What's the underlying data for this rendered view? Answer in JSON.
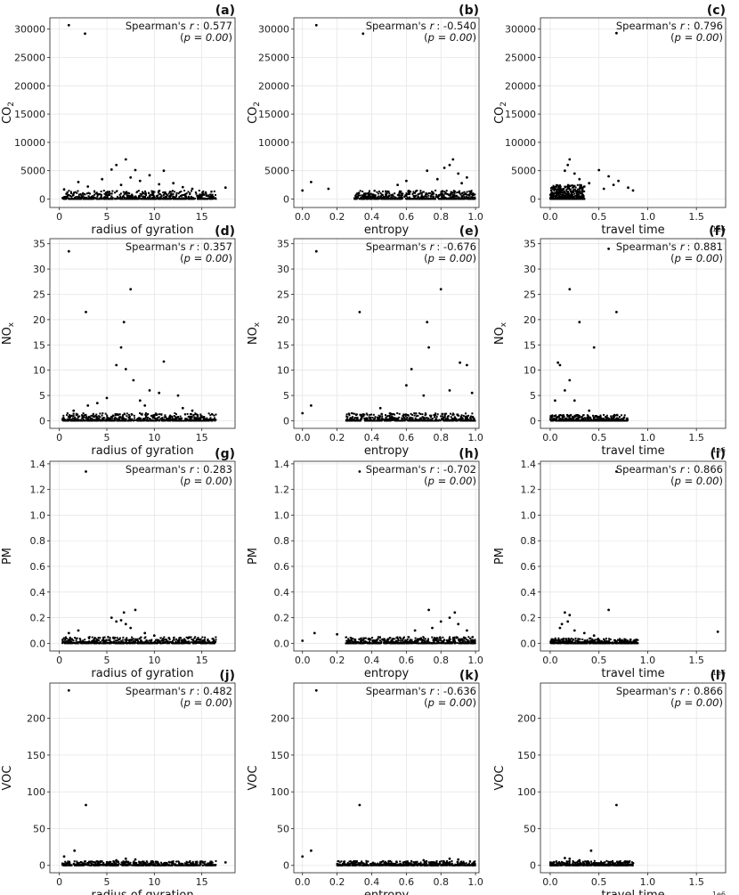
{
  "chart_data": [
    {
      "id": "a",
      "type": "scatter",
      "panel_label": "(a)",
      "xlabel": "radius of gyration",
      "ylabel": "CO",
      "ylabel_sub": "2",
      "xlim": [
        -1,
        18.5
      ],
      "ylim": [
        -1500,
        32000
      ],
      "xticks": [
        0,
        5,
        10,
        15
      ],
      "xtick_labels": [
        "0",
        "5",
        "10",
        "15"
      ],
      "yticks": [
        0,
        5000,
        10000,
        15000,
        20000,
        25000,
        30000
      ],
      "ytick_labels": [
        "0",
        "5000",
        "10000",
        "15000",
        "20000",
        "25000",
        "30000"
      ],
      "stat_name": "Spearman's",
      "stat_sym": "r",
      "stat_value": ": 0.577",
      "p_text": "p = 0.00",
      "x_multiplier": "",
      "points": [
        [
          1,
          30700
        ],
        [
          2.7,
          29200
        ],
        [
          7,
          7000
        ],
        [
          6,
          6000
        ],
        [
          5.5,
          5200
        ],
        [
          8,
          5100
        ],
        [
          11,
          5000
        ],
        [
          9.5,
          4200
        ],
        [
          7.5,
          3800
        ],
        [
          2,
          3000
        ],
        [
          4.5,
          3500
        ],
        [
          12,
          2800
        ],
        [
          10.5,
          2600
        ],
        [
          17.5,
          2000
        ],
        [
          0.5,
          1700
        ],
        [
          3,
          2200
        ],
        [
          14,
          1800
        ],
        [
          6.5,
          2500
        ],
        [
          8.5,
          3200
        ],
        [
          13,
          2100
        ]
      ],
      "band": {
        "x": [
          0.3,
          16.5
        ],
        "ymax": 1500,
        "n": 700
      }
    },
    {
      "id": "b",
      "type": "scatter",
      "panel_label": "(b)",
      "xlabel": "entropy",
      "ylabel": "CO",
      "ylabel_sub": "2",
      "xlim": [
        -0.05,
        1.02
      ],
      "ylim": [
        -1500,
        32000
      ],
      "xticks": [
        0,
        0.2,
        0.4,
        0.6,
        0.8,
        1.0
      ],
      "xtick_labels": [
        "0.0",
        "0.2",
        "0.4",
        "0.6",
        "0.8",
        "1.0"
      ],
      "yticks": [
        0,
        5000,
        10000,
        15000,
        20000,
        25000,
        30000
      ],
      "ytick_labels": [
        "0",
        "5000",
        "10000",
        "15000",
        "20000",
        "25000",
        "30000"
      ],
      "stat_name": "Spearman's",
      "stat_sym": "r",
      "stat_value": ": -0.540",
      "p_text": "p = 0.00",
      "x_multiplier": "",
      "points": [
        [
          0.08,
          30700
        ],
        [
          0.35,
          29200
        ],
        [
          0.87,
          7000
        ],
        [
          0.85,
          6000
        ],
        [
          0.72,
          5000
        ],
        [
          0.9,
          4500
        ],
        [
          0.95,
          3800
        ],
        [
          0.78,
          3500
        ],
        [
          0.6,
          3200
        ],
        [
          0.05,
          3000
        ],
        [
          0.82,
          5500
        ],
        [
          0.92,
          2800
        ],
        [
          0.55,
          2500
        ],
        [
          0.0,
          1500
        ],
        [
          0.15,
          1800
        ]
      ],
      "band": {
        "x": [
          0.3,
          1.0
        ],
        "ymax": 1500,
        "n": 600
      }
    },
    {
      "id": "c",
      "type": "scatter",
      "panel_label": "(c)",
      "xlabel": "travel time",
      "ylabel": "CO",
      "ylabel_sub": "2",
      "xlim": [
        -0.1,
        1.8
      ],
      "ylim": [
        -1500,
        32000
      ],
      "xticks": [
        0,
        0.5,
        1.0,
        1.5
      ],
      "xtick_labels": [
        "0.0",
        "0.5",
        "1.0",
        "1.5"
      ],
      "yticks": [
        0,
        5000,
        10000,
        15000,
        20000,
        25000,
        30000
      ],
      "ytick_labels": [
        "0",
        "5000",
        "10000",
        "15000",
        "20000",
        "25000",
        "30000"
      ],
      "stat_name": "Spearman's",
      "stat_sym": "r",
      "stat_value": ": 0.796",
      "p_text": "p = 0.00",
      "x_multiplier": "1e6",
      "points": [
        [
          0.68,
          29300
        ],
        [
          0.2,
          7000
        ],
        [
          0.18,
          6000
        ],
        [
          0.25,
          4500
        ],
        [
          0.5,
          5100
        ],
        [
          0.6,
          4000
        ],
        [
          0.7,
          3200
        ],
        [
          0.65,
          2500
        ],
        [
          0.8,
          2000
        ],
        [
          0.85,
          1500
        ],
        [
          0.4,
          2800
        ],
        [
          0.3,
          3500
        ],
        [
          0.15,
          5000
        ],
        [
          0.35,
          2200
        ],
        [
          0.55,
          1800
        ]
      ],
      "band": {
        "x": [
          0.0,
          0.35
        ],
        "ymax": 2500,
        "n": 500
      }
    },
    {
      "id": "d",
      "type": "scatter",
      "panel_label": "(d)",
      "xlabel": "radius of gyration",
      "ylabel": "NO",
      "ylabel_sub": "x",
      "xlim": [
        -1,
        18.5
      ],
      "ylim": [
        -1.5,
        36
      ],
      "xticks": [
        0,
        5,
        10,
        15
      ],
      "xtick_labels": [
        "0",
        "5",
        "10",
        "15"
      ],
      "yticks": [
        0,
        5,
        10,
        15,
        20,
        25,
        30,
        35
      ],
      "ytick_labels": [
        "0",
        "5",
        "10",
        "15",
        "20",
        "25",
        "30",
        "35"
      ],
      "stat_name": "Spearman's",
      "stat_sym": "r",
      "stat_value": ": 0.357",
      "p_text": "p = 0.00",
      "x_multiplier": "",
      "points": [
        [
          1,
          33.5
        ],
        [
          2.8,
          21.5
        ],
        [
          7.5,
          26
        ],
        [
          6.8,
          19.5
        ],
        [
          6.5,
          14.5
        ],
        [
          7,
          10.2
        ],
        [
          6,
          11
        ],
        [
          11,
          11.7
        ],
        [
          5,
          4.5
        ],
        [
          9.5,
          6
        ],
        [
          10.5,
          5.5
        ],
        [
          12.5,
          5
        ],
        [
          7.8,
          8
        ],
        [
          3,
          3
        ],
        [
          13,
          2.5
        ],
        [
          4,
          3.5
        ],
        [
          8.5,
          4
        ],
        [
          14,
          2
        ],
        [
          1.5,
          2
        ],
        [
          9,
          3
        ]
      ],
      "band": {
        "x": [
          0.3,
          16.5
        ],
        "ymax": 1.5,
        "n": 650
      }
    },
    {
      "id": "e",
      "type": "scatter",
      "panel_label": "(e)",
      "xlabel": "entropy",
      "ylabel": "NO",
      "ylabel_sub": "x",
      "xlim": [
        -0.05,
        1.02
      ],
      "ylim": [
        -1.5,
        36
      ],
      "xticks": [
        0,
        0.2,
        0.4,
        0.6,
        0.8,
        1.0
      ],
      "xtick_labels": [
        "0.0",
        "0.2",
        "0.4",
        "0.6",
        "0.8",
        "1.0"
      ],
      "stat_name": "Spearman's",
      "stat_sym": "r",
      "stat_value": ": -0.676",
      "p_text": "p = 0.00",
      "x_multiplier": "",
      "yticks": [
        0,
        5,
        10,
        15,
        20,
        25,
        30,
        35
      ],
      "ytick_labels": [
        "0",
        "5",
        "10",
        "15",
        "20",
        "25",
        "30",
        "35"
      ],
      "points": [
        [
          0.08,
          33.5
        ],
        [
          0.33,
          21.5
        ],
        [
          0.8,
          26
        ],
        [
          0.72,
          19.5
        ],
        [
          0.73,
          14.5
        ],
        [
          0.63,
          10.2
        ],
        [
          0.91,
          11.5
        ],
        [
          0.95,
          11
        ],
        [
          0.6,
          7
        ],
        [
          0.85,
          6
        ],
        [
          0.05,
          3
        ],
        [
          0.0,
          1.5
        ],
        [
          0.45,
          2.5
        ],
        [
          0.7,
          5
        ],
        [
          0.98,
          5.5
        ]
      ],
      "band": {
        "x": [
          0.25,
          1.0
        ],
        "ymax": 1.5,
        "n": 550
      }
    },
    {
      "id": "f",
      "type": "scatter",
      "panel_label": "(f)",
      "xlabel": "travel time",
      "ylabel": "NO",
      "ylabel_sub": "x",
      "xlim": [
        -0.1,
        1.8
      ],
      "ylim": [
        -1.5,
        36
      ],
      "xticks": [
        0,
        0.5,
        1.0,
        1.5
      ],
      "xtick_labels": [
        "0.0",
        "0.5",
        "1.0",
        "1.5"
      ],
      "stat_name": "Spearman's",
      "stat_sym": "r",
      "stat_value": ": 0.881",
      "p_text": "p = 0.00",
      "x_multiplier": "1e6",
      "yticks": [
        0,
        5,
        10,
        15,
        20,
        25,
        30,
        35
      ],
      "ytick_labels": [
        "0",
        "5",
        "10",
        "15",
        "20",
        "25",
        "30",
        "35"
      ],
      "points": [
        [
          0.6,
          34
        ],
        [
          0.2,
          26
        ],
        [
          0.68,
          21.5
        ],
        [
          0.3,
          19.5
        ],
        [
          0.45,
          14.5
        ],
        [
          0.08,
          11.5
        ],
        [
          0.1,
          11
        ],
        [
          0.2,
          8
        ],
        [
          0.15,
          6
        ],
        [
          0.25,
          4
        ],
        [
          0.05,
          4
        ],
        [
          0.4,
          2
        ]
      ],
      "band": {
        "x": [
          0.0,
          0.8
        ],
        "ymax": 1.2,
        "n": 450
      }
    },
    {
      "id": "g",
      "type": "scatter",
      "panel_label": "(g)",
      "xlabel": "radius of gyration",
      "ylabel": "PM",
      "ylabel_sub": "",
      "xlim": [
        -1,
        18.5
      ],
      "ylim": [
        -0.06,
        1.42
      ],
      "xticks": [
        0,
        5,
        10,
        15
      ],
      "xtick_labels": [
        "0",
        "5",
        "10",
        "15"
      ],
      "yticks": [
        0,
        0.2,
        0.4,
        0.6,
        0.8,
        1.0,
        1.2,
        1.4
      ],
      "ytick_labels": [
        "0.0",
        "0.2",
        "0.4",
        "0.6",
        "0.8",
        "1.0",
        "1.2",
        "1.4"
      ],
      "stat_name": "Spearman's",
      "stat_sym": "r",
      "stat_value": ": 0.283",
      "p_text": "p = 0.00",
      "x_multiplier": "",
      "points": [
        [
          2.8,
          1.34
        ],
        [
          6.8,
          0.24
        ],
        [
          8,
          0.26
        ],
        [
          5.5,
          0.2
        ],
        [
          6,
          0.17
        ],
        [
          7,
          0.15
        ],
        [
          7.5,
          0.12
        ],
        [
          1,
          0.08
        ],
        [
          2,
          0.1
        ],
        [
          9,
          0.08
        ],
        [
          10,
          0.06
        ],
        [
          6.5,
          0.18
        ]
      ],
      "band": {
        "x": [
          0.3,
          16.5
        ],
        "ymax": 0.05,
        "n": 600
      }
    },
    {
      "id": "h",
      "type": "scatter",
      "panel_label": "(h)",
      "xlabel": "entropy",
      "ylabel": "PM",
      "ylabel_sub": "",
      "xlim": [
        -0.05,
        1.02
      ],
      "ylim": [
        -0.06,
        1.42
      ],
      "xticks": [
        0,
        0.2,
        0.4,
        0.6,
        0.8,
        1.0
      ],
      "xtick_labels": [
        "0.0",
        "0.2",
        "0.4",
        "0.6",
        "0.8",
        "1.0"
      ],
      "yticks": [
        0,
        0.2,
        0.4,
        0.6,
        0.8,
        1.0,
        1.2,
        1.4
      ],
      "ytick_labels": [
        "0.0",
        "0.2",
        "0.4",
        "0.6",
        "0.8",
        "1.0",
        "1.2",
        "1.4"
      ],
      "stat_name": "Spearman's",
      "stat_sym": "r",
      "stat_value": ": -0.702",
      "p_text": "p = 0.00",
      "x_multiplier": "",
      "points": [
        [
          0.33,
          1.34
        ],
        [
          0.73,
          0.26
        ],
        [
          0.88,
          0.24
        ],
        [
          0.85,
          0.2
        ],
        [
          0.8,
          0.17
        ],
        [
          0.9,
          0.15
        ],
        [
          0.75,
          0.12
        ],
        [
          0.07,
          0.08
        ],
        [
          0.2,
          0.07
        ],
        [
          0.65,
          0.1
        ],
        [
          0.95,
          0.1
        ],
        [
          0.0,
          0.02
        ]
      ],
      "band": {
        "x": [
          0.25,
          1.0
        ],
        "ymax": 0.05,
        "n": 550
      }
    },
    {
      "id": "i",
      "type": "scatter",
      "panel_label": "(i)",
      "xlabel": "travel time",
      "ylabel": "PM",
      "ylabel_sub": "",
      "xlim": [
        -0.1,
        1.8
      ],
      "ylim": [
        -0.06,
        1.42
      ],
      "xticks": [
        0,
        0.5,
        1.0,
        1.5
      ],
      "xtick_labels": [
        "0.0",
        "0.5",
        "1.0",
        "1.5"
      ],
      "yticks": [
        0,
        0.2,
        0.4,
        0.6,
        0.8,
        1.0,
        1.2,
        1.4
      ],
      "ytick_labels": [
        "0.0",
        "0.2",
        "0.4",
        "0.6",
        "0.8",
        "1.0",
        "1.2",
        "1.4"
      ],
      "stat_name": "Spearman's",
      "stat_sym": "r",
      "stat_value": ": 0.866",
      "p_text": "p = 0.00",
      "x_multiplier": "1e6",
      "points": [
        [
          0.68,
          1.34
        ],
        [
          0.6,
          0.26
        ],
        [
          0.15,
          0.24
        ],
        [
          0.2,
          0.22
        ],
        [
          0.18,
          0.17
        ],
        [
          0.12,
          0.15
        ],
        [
          0.25,
          0.1
        ],
        [
          0.35,
          0.08
        ],
        [
          0.45,
          0.06
        ],
        [
          1.72,
          0.09
        ],
        [
          0.1,
          0.12
        ]
      ],
      "band": {
        "x": [
          0.0,
          0.9
        ],
        "ymax": 0.04,
        "n": 450
      }
    },
    {
      "id": "j",
      "type": "scatter",
      "panel_label": "(j)",
      "xlabel": "radius of gyration",
      "ylabel": "VOC",
      "ylabel_sub": "",
      "xlim": [
        -1,
        18.5
      ],
      "ylim": [
        -10,
        248
      ],
      "xticks": [
        0,
        5,
        10,
        15
      ],
      "xtick_labels": [
        "0",
        "5",
        "10",
        "15"
      ],
      "yticks": [
        0,
        50,
        100,
        150,
        200
      ],
      "ytick_labels": [
        "0",
        "50",
        "100",
        "150",
        "200"
      ],
      "stat_name": "Spearman's",
      "stat_sym": "r",
      "stat_value": ": 0.482",
      "p_text": "p = 0.00",
      "x_multiplier": "",
      "points": [
        [
          1,
          238
        ],
        [
          2.8,
          82
        ],
        [
          1.6,
          20
        ],
        [
          0.5,
          12
        ],
        [
          7,
          9
        ],
        [
          8,
          8
        ],
        [
          6,
          7
        ],
        [
          17.5,
          4
        ]
      ],
      "band": {
        "x": [
          0.3,
          16.5
        ],
        "ymax": 6,
        "n": 650
      }
    },
    {
      "id": "k",
      "type": "scatter",
      "panel_label": "(k)",
      "xlabel": "entropy",
      "ylabel": "VOC",
      "ylabel_sub": "",
      "xlim": [
        -0.05,
        1.02
      ],
      "ylim": [
        -10,
        248
      ],
      "xticks": [
        0,
        0.2,
        0.4,
        0.6,
        0.8,
        1.0
      ],
      "xtick_labels": [
        "0.0",
        "0.2",
        "0.4",
        "0.6",
        "0.8",
        "1.0"
      ],
      "yticks": [
        0,
        50,
        100,
        150,
        200
      ],
      "ytick_labels": [
        "0",
        "50",
        "100",
        "150",
        "200"
      ],
      "stat_name": "Spearman's",
      "stat_sym": "r",
      "stat_value": ": -0.636",
      "p_text": "p = 0.00",
      "x_multiplier": "",
      "points": [
        [
          0.08,
          238
        ],
        [
          0.33,
          82
        ],
        [
          0.05,
          20
        ],
        [
          0.0,
          12
        ],
        [
          0.85,
          9
        ],
        [
          0.9,
          8
        ],
        [
          0.7,
          7
        ]
      ],
      "band": {
        "x": [
          0.2,
          1.0
        ],
        "ymax": 6,
        "n": 600
      }
    },
    {
      "id": "l",
      "type": "scatter",
      "panel_label": "(l)",
      "xlabel": "travel time",
      "ylabel": "VOC",
      "ylabel_sub": "",
      "xlim": [
        -0.1,
        1.8
      ],
      "ylim": [
        -10,
        248
      ],
      "xticks": [
        0,
        0.5,
        1.0,
        1.5
      ],
      "xtick_labels": [
        "0.0",
        "0.5",
        "1.0",
        "1.5"
      ],
      "yticks": [
        0,
        50,
        100,
        150,
        200
      ],
      "ytick_labels": [
        "0",
        "50",
        "100",
        "150",
        "200"
      ],
      "stat_name": "Spearman's",
      "stat_sym": "r",
      "stat_value": ": 0.866",
      "p_text": "p = 0.00",
      "x_multiplier": "1e6",
      "points": [
        [
          0.68,
          82
        ],
        [
          0.42,
          20
        ],
        [
          0.15,
          10
        ],
        [
          0.2,
          9
        ],
        [
          0.3,
          7
        ],
        [
          0.8,
          4
        ],
        [
          0.85,
          3
        ]
      ],
      "band": {
        "x": [
          0.0,
          0.85
        ],
        "ymax": 6,
        "n": 450
      }
    }
  ]
}
